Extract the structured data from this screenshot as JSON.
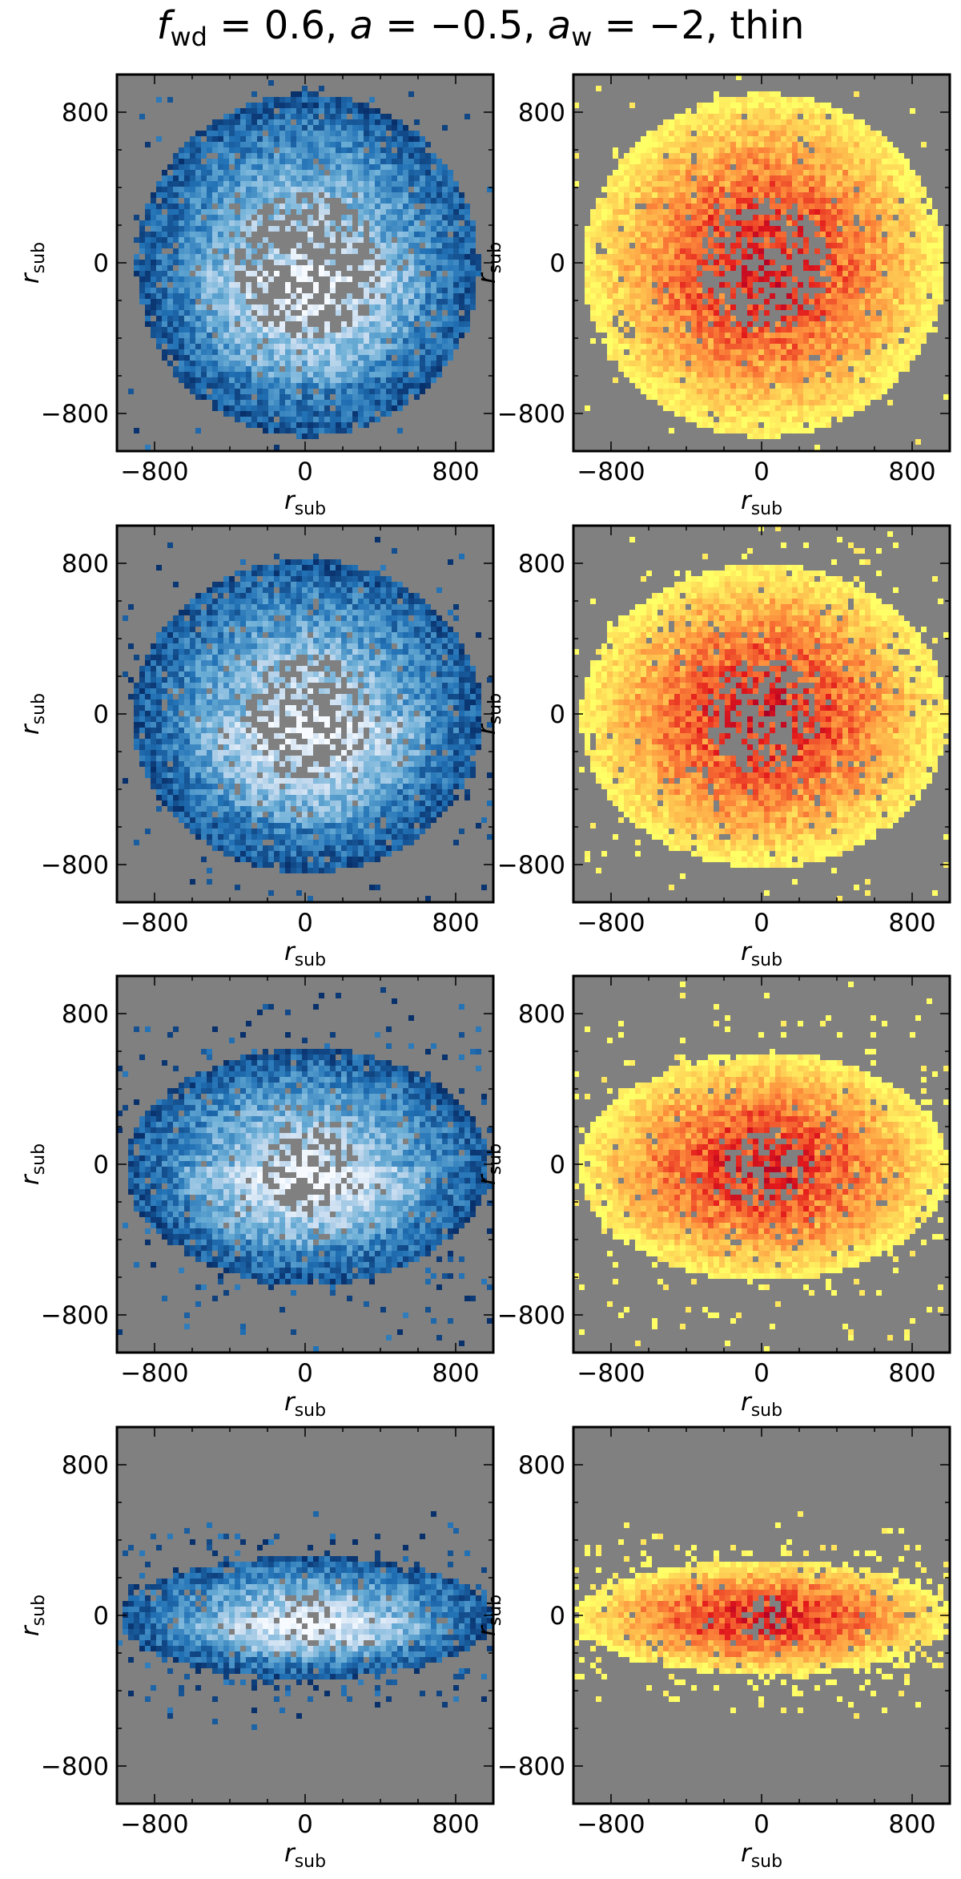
{
  "figure": {
    "title_prefix": "f",
    "title_prefix_sub": "wd",
    "title_mid1": " = 0.6, ",
    "title_a": "a",
    "title_mid2": " = −0.5, ",
    "title_aw": "a",
    "title_aw_sub": "w",
    "title_tail": " = −2, thin"
  },
  "colors": {
    "background": "#808080",
    "blue_cmap": [
      "#f7fbff",
      "#c6dbef",
      "#6baed6",
      "#2171b5",
      "#08306b"
    ],
    "red_cmap": [
      "#ffff66",
      "#fd8d3c",
      "#e31a1c",
      "#b10026",
      "#800026"
    ]
  },
  "chart_data": [
    {
      "type": "heatmap",
      "row": 1,
      "column": "left",
      "colormap": "Blues",
      "xlabel": "r",
      "xlabel_sub": "sub",
      "ylabel": "r",
      "ylabel_sub": "sub",
      "xlim": [
        -1000,
        1000
      ],
      "ylim": [
        -1000,
        1000
      ],
      "xticks": [
        -800,
        0,
        800
      ],
      "yticks": [
        -800,
        0,
        800
      ],
      "xticklabels": [
        "−800",
        "0",
        "800"
      ],
      "yticklabels": [
        "−800",
        "0",
        "800"
      ],
      "distribution": {
        "rx": 900,
        "ry": 900,
        "center_y": 0,
        "outliers": 0.02,
        "inner_hole_radius": 380,
        "inner_fill": 0.45
      }
    },
    {
      "type": "heatmap",
      "row": 1,
      "column": "right",
      "colormap": "YlOrRd",
      "xlabel": "r",
      "xlabel_sub": "sub",
      "ylabel": "r",
      "ylabel_sub": "sub",
      "xlim": [
        -1000,
        1000
      ],
      "ylim": [
        -1000,
        1000
      ],
      "xticks": [
        -800,
        0,
        800
      ],
      "yticks": [
        -800,
        0,
        800
      ],
      "xticklabels": [
        "−800",
        "0",
        "800"
      ],
      "yticklabels": [
        "−800",
        "0",
        "800"
      ],
      "distribution": {
        "rx": 950,
        "ry": 900,
        "center_y": 0,
        "outliers": 0.02,
        "inner_hole_radius": 350,
        "inner_fill": 0.5
      }
    },
    {
      "type": "heatmap",
      "row": 2,
      "column": "left",
      "colormap": "Blues",
      "xlabel": "r",
      "xlabel_sub": "sub",
      "ylabel": "r",
      "ylabel_sub": "sub",
      "xlim": [
        -1000,
        1000
      ],
      "ylim": [
        -1000,
        1000
      ],
      "xticks": [
        -800,
        0,
        800
      ],
      "yticks": [
        -800,
        0,
        800
      ],
      "xticklabels": [
        "−800",
        "0",
        "800"
      ],
      "yticklabels": [
        "−800",
        "0",
        "800"
      ],
      "distribution": {
        "rx": 920,
        "ry": 820,
        "center_y": 0,
        "outliers": 0.04,
        "inner_hole_radius": 330,
        "inner_fill": 0.5
      }
    },
    {
      "type": "heatmap",
      "row": 2,
      "column": "right",
      "colormap": "YlOrRd",
      "xlabel": "r",
      "xlabel_sub": "sub",
      "ylabel": "r",
      "ylabel_sub": "sub",
      "xlim": [
        -1000,
        1000
      ],
      "ylim": [
        -1000,
        1000
      ],
      "xticks": [
        -800,
        0,
        800
      ],
      "yticks": [
        -800,
        0,
        800
      ],
      "xticklabels": [
        "−800",
        "0",
        "800"
      ],
      "yticklabels": [
        "−800",
        "0",
        "800"
      ],
      "distribution": {
        "rx": 960,
        "ry": 800,
        "center_y": 0,
        "outliers": 0.04,
        "inner_hole_radius": 300,
        "inner_fill": 0.55
      }
    },
    {
      "type": "heatmap",
      "row": 3,
      "column": "left",
      "colormap": "Blues",
      "xlabel": "r",
      "xlabel_sub": "sub",
      "ylabel": "r",
      "ylabel_sub": "sub",
      "xlim": [
        -1000,
        1000
      ],
      "ylim": [
        -1000,
        1000
      ],
      "xticks": [
        -800,
        0,
        800
      ],
      "yticks": [
        -800,
        0,
        800
      ],
      "xticklabels": [
        "−800",
        "0",
        "800"
      ],
      "yticklabels": [
        "−800",
        "0",
        "800"
      ],
      "distribution": {
        "rx": 950,
        "ry": 620,
        "center_y": 0,
        "outliers": 0.09,
        "inner_hole_radius": 250,
        "inner_fill": 0.55
      }
    },
    {
      "type": "heatmap",
      "row": 3,
      "column": "right",
      "colormap": "YlOrRd",
      "xlabel": "r",
      "xlabel_sub": "sub",
      "ylabel": "r",
      "ylabel_sub": "sub",
      "xlim": [
        -1000,
        1000
      ],
      "ylim": [
        -1000,
        1000
      ],
      "xticks": [
        -800,
        0,
        800
      ],
      "yticks": [
        -800,
        0,
        800
      ],
      "xticklabels": [
        "−800",
        "0",
        "800"
      ],
      "yticklabels": [
        "−800",
        "0",
        "800"
      ],
      "distribution": {
        "rx": 970,
        "ry": 600,
        "center_y": 0,
        "outliers": 0.09,
        "inner_hole_radius": 220,
        "inner_fill": 0.6
      }
    },
    {
      "type": "heatmap",
      "row": 4,
      "column": "left",
      "colormap": "Blues",
      "xlabel": "r",
      "xlabel_sub": "sub",
      "ylabel": "r",
      "ylabel_sub": "sub",
      "xlim": [
        -1000,
        1000
      ],
      "ylim": [
        -1000,
        1000
      ],
      "xticks": [
        -800,
        0,
        800
      ],
      "yticks": [
        -800,
        0,
        800
      ],
      "xticklabels": [
        "−800",
        "0",
        "800"
      ],
      "yticklabels": [
        "−800",
        "0",
        "800"
      ],
      "distribution": {
        "rx": 980,
        "ry": 320,
        "center_y": 0,
        "outliers": 0.16,
        "inner_hole_radius": 150,
        "inner_fill": 0.6
      }
    },
    {
      "type": "heatmap",
      "row": 4,
      "column": "right",
      "colormap": "YlOrRd",
      "xlabel": "r",
      "xlabel_sub": "sub",
      "ylabel": "r",
      "ylabel_sub": "sub",
      "xlim": [
        -1000,
        1000
      ],
      "ylim": [
        -1000,
        1000
      ],
      "xticks": [
        -800,
        0,
        800
      ],
      "yticks": [
        -800,
        0,
        800
      ],
      "xticklabels": [
        "−800",
        "0",
        "800"
      ],
      "yticklabels": [
        "−800",
        "0",
        "800"
      ],
      "distribution": {
        "rx": 990,
        "ry": 300,
        "center_y": 0,
        "outliers": 0.16,
        "inner_hole_radius": 120,
        "inner_fill": 0.65
      }
    }
  ]
}
